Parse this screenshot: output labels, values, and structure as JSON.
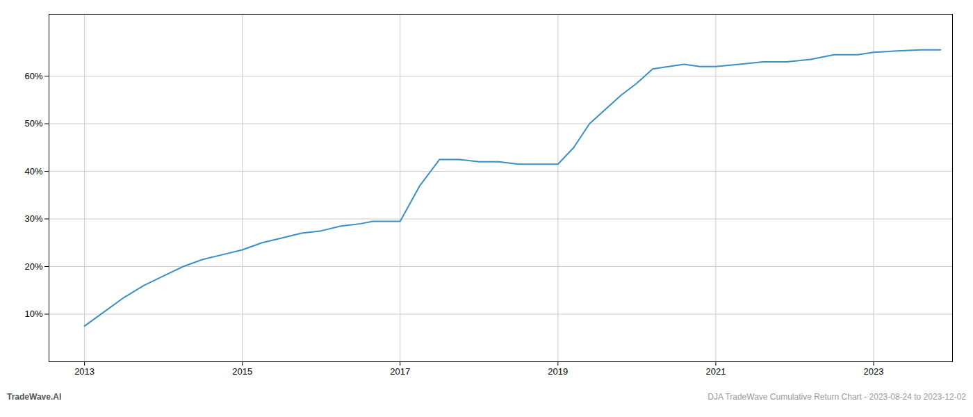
{
  "chart_data": {
    "type": "line",
    "x": [
      2013.0,
      2013.25,
      2013.5,
      2013.75,
      2014.0,
      2014.25,
      2014.5,
      2014.75,
      2015.0,
      2015.25,
      2015.5,
      2015.75,
      2016.0,
      2016.25,
      2016.5,
      2016.65,
      2016.75,
      2017.0,
      2017.25,
      2017.5,
      2017.75,
      2018.0,
      2018.25,
      2018.5,
      2018.75,
      2019.0,
      2019.2,
      2019.4,
      2019.6,
      2019.8,
      2020.0,
      2020.2,
      2020.4,
      2020.6,
      2020.8,
      2021.0,
      2021.3,
      2021.6,
      2021.9,
      2022.2,
      2022.5,
      2022.8,
      2023.0,
      2023.3,
      2023.6,
      2023.85
    ],
    "values": [
      7.5,
      10.5,
      13.5,
      16.0,
      18.0,
      20.0,
      21.5,
      22.5,
      23.5,
      25.0,
      26.0,
      27.0,
      27.5,
      28.5,
      29.0,
      29.5,
      29.5,
      29.5,
      37.0,
      42.5,
      42.5,
      42.0,
      42.0,
      41.5,
      41.5,
      41.5,
      45.0,
      50.0,
      53.0,
      56.0,
      58.5,
      61.5,
      62.0,
      62.5,
      62.0,
      62.0,
      62.5,
      63.0,
      63.0,
      63.5,
      64.5,
      64.5,
      65.0,
      65.3,
      65.5,
      65.5
    ],
    "color": "#3a8fc7",
    "xlim": [
      2012.55,
      2024.0
    ],
    "xticks": [
      2013,
      2015,
      2017,
      2019,
      2021,
      2023
    ],
    "ylim": [
      0,
      73
    ],
    "yticks": [
      {
        "value": 10,
        "label": "10%"
      },
      {
        "value": 20,
        "label": "20%"
      },
      {
        "value": 30,
        "label": "30%"
      },
      {
        "value": 40,
        "label": "40%"
      },
      {
        "value": 50,
        "label": "50%"
      },
      {
        "value": 60,
        "label": "60%"
      }
    ],
    "grid": true,
    "annotations": [
      "TradeWave.AI",
      "DJA TradeWave Cumulative Return Chart - 2023-08-24 to 2023-12-02"
    ]
  }
}
